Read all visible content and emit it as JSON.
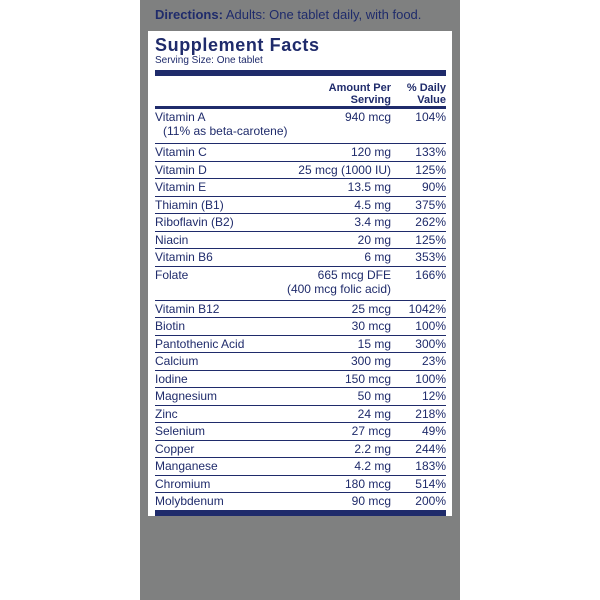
{
  "directions": {
    "label": "Directions:",
    "text": "Adults:  One tablet daily, with food."
  },
  "panel": {
    "title": "Supplement Facts",
    "serving_size": "Serving Size: One tablet",
    "headers": {
      "amount_line1": "Amount Per",
      "amount_line2": "Serving",
      "dv_line1": "% Daily",
      "dv_line2": "Value"
    },
    "nutrients": [
      {
        "name": "Vitamin A",
        "sub": "(11% as beta-carotene)",
        "amount": "940 mcg",
        "amount2": "",
        "dv": "104%"
      },
      {
        "name": "Vitamin C",
        "sub": "",
        "amount": "120 mg",
        "amount2": "",
        "dv": "133%"
      },
      {
        "name": "Vitamin D",
        "sub": "",
        "amount": "25 mcg (1000 IU)",
        "amount2": "",
        "dv": "125%"
      },
      {
        "name": "Vitamin E",
        "sub": "",
        "amount": "13.5 mg",
        "amount2": "",
        "dv": "90%"
      },
      {
        "name": "Thiamin (B1)",
        "sub": "",
        "amount": "4.5 mg",
        "amount2": "",
        "dv": "375%"
      },
      {
        "name": "Riboflavin (B2)",
        "sub": "",
        "amount": "3.4 mg",
        "amount2": "",
        "dv": "262%"
      },
      {
        "name": "Niacin",
        "sub": "",
        "amount": "20 mg",
        "amount2": "",
        "dv": "125%"
      },
      {
        "name": "Vitamin B6",
        "sub": "",
        "amount": "6 mg",
        "amount2": "",
        "dv": "353%"
      },
      {
        "name": "Folate",
        "sub": "",
        "amount": "665 mcg DFE",
        "amount2": "(400 mcg folic acid)",
        "dv": "166%"
      },
      {
        "name": "Vitamin B12",
        "sub": "",
        "amount": "25 mcg",
        "amount2": "",
        "dv": "1042%"
      },
      {
        "name": "Biotin",
        "sub": "",
        "amount": "30 mcg",
        "amount2": "",
        "dv": "100%"
      },
      {
        "name": "Pantothenic Acid",
        "sub": "",
        "amount": "15 mg",
        "amount2": "",
        "dv": "300%"
      },
      {
        "name": "Calcium",
        "sub": "",
        "amount": "300 mg",
        "amount2": "",
        "dv": "23%"
      },
      {
        "name": "Iodine",
        "sub": "",
        "amount": "150 mcg",
        "amount2": "",
        "dv": "100%"
      },
      {
        "name": "Magnesium",
        "sub": "",
        "amount": "50 mg",
        "amount2": "",
        "dv": "12%"
      },
      {
        "name": "Zinc",
        "sub": "",
        "amount": "24 mg",
        "amount2": "",
        "dv": "218%"
      },
      {
        "name": "Selenium",
        "sub": "",
        "amount": "27 mcg",
        "amount2": "",
        "dv": "49%"
      },
      {
        "name": "Copper",
        "sub": "",
        "amount": "2.2 mg",
        "amount2": "",
        "dv": "244%"
      },
      {
        "name": "Manganese",
        "sub": "",
        "amount": "4.2 mg",
        "amount2": "",
        "dv": "183%"
      },
      {
        "name": "Chromium",
        "sub": "",
        "amount": "180 mcg",
        "amount2": "",
        "dv": "514%"
      },
      {
        "name": "Molybdenum",
        "sub": "",
        "amount": "90 mcg",
        "amount2": "",
        "dv": "200%"
      }
    ]
  },
  "colors": {
    "ink": "#1f2b6b",
    "panel_gray": "#7f8080",
    "label_white": "#ffffff"
  }
}
